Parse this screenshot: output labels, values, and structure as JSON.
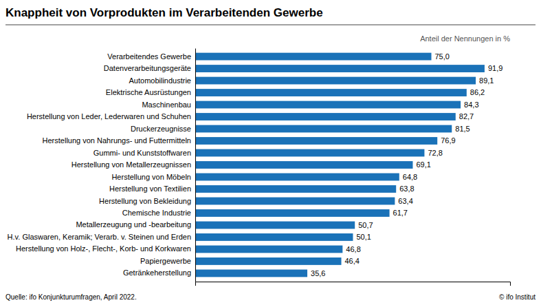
{
  "chart_data": {
    "type": "bar",
    "orientation": "horizontal",
    "title": "Knappheit von Vorprodukten im Verarbeitenden Gewerbe",
    "subtitle": "Anteil der Nennungen in %",
    "categories": [
      "Verarbeitendes Gewerbe",
      "Datenverarbeitungsgeräte",
      "Automobilindustrie",
      "Elektrische Ausrüstungen",
      "Maschinenbau",
      "Herstellung von Leder, Lederwaren und Schuhen",
      "Druckerzeugnisse",
      "Herstellung von Nahrungs- und Futtermitteln",
      "Gummi- und Kunststoffwaren",
      "Herstellung von Metallerzeugnissen",
      "Herstellung von Möbeln",
      "Herstellung von Textilien",
      "Herstellung von Bekleidung",
      "Chemische Industrie",
      "Metallerzeugung und -bearbeitung",
      "H.v. Glaswaren, Keramik; Verarb. v. Steinen und Erden",
      "Herstellung von Holz-, Flecht-, Korb- und Korkwaren",
      "Papiergewerbe",
      "Getränkeherstellung"
    ],
    "values": [
      75.0,
      91.9,
      89.1,
      86.2,
      84.3,
      82.7,
      81.5,
      76.9,
      72.8,
      69.1,
      64.8,
      63.8,
      63.4,
      61.7,
      50.7,
      50.1,
      46.8,
      46.4,
      35.6
    ],
    "value_labels": [
      "75,0",
      "91,9",
      "89,1",
      "86,2",
      "84,3",
      "82,7",
      "81,5",
      "76,9",
      "72,8",
      "69,1",
      "64,8",
      "63,8",
      "63,4",
      "61,7",
      "50,7",
      "50,1",
      "46,8",
      "46,4",
      "35,6"
    ],
    "data_labels": true,
    "color": "#1a72b8",
    "xlim": [
      0,
      100
    ],
    "tick_labels": "y",
    "grid": false,
    "annotations": [
      "Quelle: ifo Konjunkturumfragen, April 2022.",
      "© ifo Institut"
    ]
  }
}
